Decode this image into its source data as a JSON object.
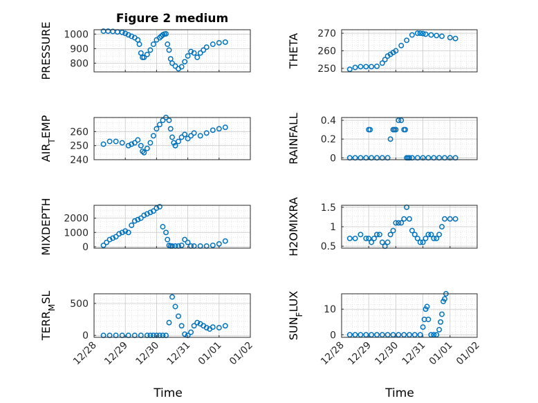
{
  "chart_data": [
    {
      "type": "scatter",
      "title": "Figure 2 medium",
      "ylabel": "PRESSURE",
      "ylabel_sub": "",
      "ylim": [
        740,
        1030
      ],
      "yticks": [
        800,
        900,
        1000
      ],
      "xlim": [
        0,
        5
      ],
      "xticks": [],
      "x": [
        0.3,
        0.45,
        0.6,
        0.75,
        0.9,
        1.0,
        1.1,
        1.2,
        1.3,
        1.4,
        1.45,
        1.5,
        1.55,
        1.6,
        1.7,
        1.8,
        1.9,
        2.0,
        2.1,
        2.15,
        2.2,
        2.25,
        2.3,
        2.35,
        2.4,
        2.45,
        2.5,
        2.6,
        2.7,
        2.8,
        2.9,
        3.0,
        3.1,
        3.2,
        3.3,
        3.4,
        3.5,
        3.6,
        3.8,
        4.0,
        4.2
      ],
      "y": [
        1020,
        1020,
        1018,
        1015,
        1012,
        1005,
        995,
        985,
        975,
        960,
        930,
        870,
        840,
        840,
        860,
        890,
        930,
        960,
        975,
        985,
        995,
        1000,
        1002,
        930,
        890,
        830,
        800,
        780,
        762,
        775,
        810,
        850,
        880,
        870,
        840,
        870,
        890,
        910,
        930,
        940,
        945
      ]
    },
    {
      "type": "scatter",
      "title": "",
      "ylabel": "THETA",
      "ylabel_sub": "",
      "ylim": [
        248,
        272
      ],
      "yticks": [
        250,
        260,
        270
      ],
      "xlim": [
        0,
        5
      ],
      "xticks": [],
      "x": [
        0.3,
        0.5,
        0.7,
        0.9,
        1.1,
        1.3,
        1.5,
        1.6,
        1.7,
        1.8,
        1.9,
        2.0,
        2.2,
        2.4,
        2.6,
        2.8,
        2.9,
        3.0,
        3.1,
        3.3,
        3.5,
        3.7,
        4.0,
        4.2
      ],
      "y": [
        249.5,
        250.5,
        251,
        251,
        251,
        251.2,
        253,
        255,
        257,
        258,
        259,
        260,
        263,
        266,
        269,
        270,
        270,
        269.8,
        269.5,
        269,
        268.7,
        268.3,
        267.5,
        267
      ]
    },
    {
      "type": "scatter",
      "title": "",
      "ylabel": "AIR",
      "ylabel_sub": "T",
      "ylabel_tail": "EMP",
      "ylim": [
        240,
        270
      ],
      "yticks": [
        240,
        250,
        260
      ],
      "xlim": [
        0,
        5
      ],
      "xticks": [],
      "x": [
        0.3,
        0.5,
        0.7,
        0.9,
        1.1,
        1.2,
        1.3,
        1.4,
        1.5,
        1.55,
        1.6,
        1.7,
        1.8,
        1.9,
        2.0,
        2.1,
        2.2,
        2.3,
        2.4,
        2.45,
        2.5,
        2.55,
        2.6,
        2.7,
        2.8,
        2.9,
        3.0,
        3.1,
        3.2,
        3.4,
        3.6,
        3.8,
        4.0,
        4.2
      ],
      "y": [
        251,
        253,
        253,
        252,
        250,
        251,
        252,
        254,
        250,
        246,
        245,
        248,
        252,
        257,
        262,
        265,
        268,
        270,
        268,
        262,
        256,
        252,
        250,
        253,
        256,
        258,
        255,
        257,
        259,
        257,
        259,
        261,
        262,
        263
      ]
    },
    {
      "type": "scatter",
      "title": "",
      "ylabel": "RAINFALL",
      "ylabel_sub": "",
      "ylim": [
        -0.02,
        0.43
      ],
      "yticks": [
        0,
        0.2,
        0.4
      ],
      "xlim": [
        0,
        5
      ],
      "xticks": [],
      "x": [
        0.3,
        0.5,
        0.7,
        0.9,
        1.0,
        1.05,
        1.1,
        1.3,
        1.5,
        1.7,
        1.8,
        1.9,
        1.95,
        2.0,
        2.1,
        2.2,
        2.3,
        2.35,
        2.4,
        2.45,
        2.5,
        2.6,
        2.8,
        3.0,
        3.2,
        3.4,
        3.6,
        3.8,
        4.0,
        4.2
      ],
      "y": [
        0,
        0,
        0,
        0,
        0.3,
        0.3,
        0,
        0,
        0,
        0,
        0.2,
        0.3,
        0.3,
        0.3,
        0.4,
        0.4,
        0.3,
        0.3,
        0,
        0,
        0,
        0,
        0,
        0,
        0,
        0,
        0,
        0,
        0,
        0
      ]
    },
    {
      "type": "scatter",
      "title": "",
      "ylabel": "MIXDEPTH",
      "ylabel_sub": "",
      "ylim": [
        -100,
        2900
      ],
      "yticks": [
        0,
        1000,
        2000
      ],
      "xlim": [
        0,
        5
      ],
      "xticks": [],
      "x": [
        0.3,
        0.4,
        0.5,
        0.6,
        0.7,
        0.8,
        0.9,
        1.0,
        1.1,
        1.2,
        1.3,
        1.4,
        1.5,
        1.6,
        1.7,
        1.8,
        1.9,
        2.0,
        2.1,
        2.2,
        2.3,
        2.35,
        2.4,
        2.45,
        2.5,
        2.6,
        2.7,
        2.8,
        2.9,
        3.0,
        3.1,
        3.2,
        3.4,
        3.6,
        3.8,
        4.0,
        4.2
      ],
      "y": [
        100,
        300,
        500,
        600,
        700,
        900,
        1000,
        1100,
        1000,
        1500,
        1800,
        1900,
        2000,
        2200,
        2300,
        2400,
        2500,
        2700,
        2800,
        1400,
        1000,
        500,
        100,
        50,
        50,
        50,
        50,
        100,
        500,
        300,
        50,
        50,
        50,
        50,
        100,
        200,
        400
      ]
    },
    {
      "type": "scatter",
      "title": "",
      "ylabel": "H2OMIXRA",
      "ylabel_sub": "",
      "ylim": [
        0.45,
        1.55
      ],
      "yticks": [
        0.5,
        1,
        1.5
      ],
      "xlim": [
        0,
        5
      ],
      "xticks": [],
      "x": [
        0.3,
        0.5,
        0.7,
        0.9,
        1.0,
        1.1,
        1.2,
        1.3,
        1.4,
        1.5,
        1.6,
        1.7,
        1.8,
        1.9,
        2.0,
        2.1,
        2.2,
        2.3,
        2.4,
        2.5,
        2.6,
        2.7,
        2.8,
        2.9,
        3.0,
        3.1,
        3.2,
        3.3,
        3.4,
        3.5,
        3.6,
        3.7,
        3.8,
        4.0,
        4.2
      ],
      "y": [
        0.7,
        0.7,
        0.8,
        0.7,
        0.7,
        0.6,
        0.7,
        0.8,
        0.8,
        0.6,
        0.5,
        0.6,
        0.8,
        0.9,
        1.1,
        1.1,
        1.1,
        1.2,
        1.5,
        1.2,
        0.9,
        0.8,
        0.7,
        0.6,
        0.6,
        0.7,
        0.8,
        0.8,
        0.7,
        0.7,
        0.8,
        1.0,
        1.2,
        1.2,
        1.2
      ]
    },
    {
      "type": "scatter",
      "title": "",
      "ylabel": "TERR",
      "ylabel_sub": "M",
      "ylabel_tail": "SL",
      "ylim": [
        -30,
        650
      ],
      "yticks": [
        0,
        500
      ],
      "xlim": [
        0,
        5
      ],
      "xticks": [
        "12/28",
        "12/29",
        "12/30",
        "12/31",
        "01/01",
        "01/02"
      ],
      "xlabel": "Time",
      "x": [
        0.3,
        0.5,
        0.7,
        0.9,
        1.1,
        1.3,
        1.5,
        1.7,
        1.8,
        1.9,
        2.0,
        2.1,
        2.2,
        2.3,
        2.4,
        2.5,
        2.6,
        2.7,
        2.8,
        2.9,
        3.0,
        3.1,
        3.2,
        3.3,
        3.4,
        3.5,
        3.6,
        3.7,
        3.8,
        4.0,
        4.2
      ],
      "y": [
        0,
        0,
        0,
        0,
        0,
        0,
        0,
        0,
        0,
        0,
        0,
        0,
        0,
        0,
        200,
        600,
        450,
        300,
        150,
        20,
        0,
        50,
        150,
        200,
        180,
        150,
        120,
        100,
        130,
        120,
        150
      ]
    },
    {
      "type": "scatter",
      "title": "",
      "ylabel": "SUN",
      "ylabel_sub": "F",
      "ylabel_tail": "LUX",
      "ylim": [
        -1,
        16
      ],
      "yticks": [
        0,
        10
      ],
      "xlim": [
        0,
        5
      ],
      "xticks": [
        "12/28",
        "12/29",
        "12/30",
        "12/31",
        "01/01",
        "01/02"
      ],
      "xlabel": "Time",
      "x": [
        0.3,
        0.5,
        0.7,
        0.9,
        1.1,
        1.3,
        1.5,
        1.7,
        1.9,
        2.1,
        2.3,
        2.5,
        2.7,
        2.9,
        3.0,
        3.05,
        3.1,
        3.15,
        3.2,
        3.3,
        3.4,
        3.5,
        3.6,
        3.65,
        3.7,
        3.75,
        3.8,
        3.85
      ],
      "y": [
        0,
        0,
        0,
        0,
        0,
        0,
        0,
        0,
        0,
        0,
        0,
        0,
        0,
        0,
        3,
        6,
        10,
        11,
        6,
        0,
        0,
        0,
        2,
        5,
        8,
        13,
        14,
        16
      ]
    }
  ]
}
